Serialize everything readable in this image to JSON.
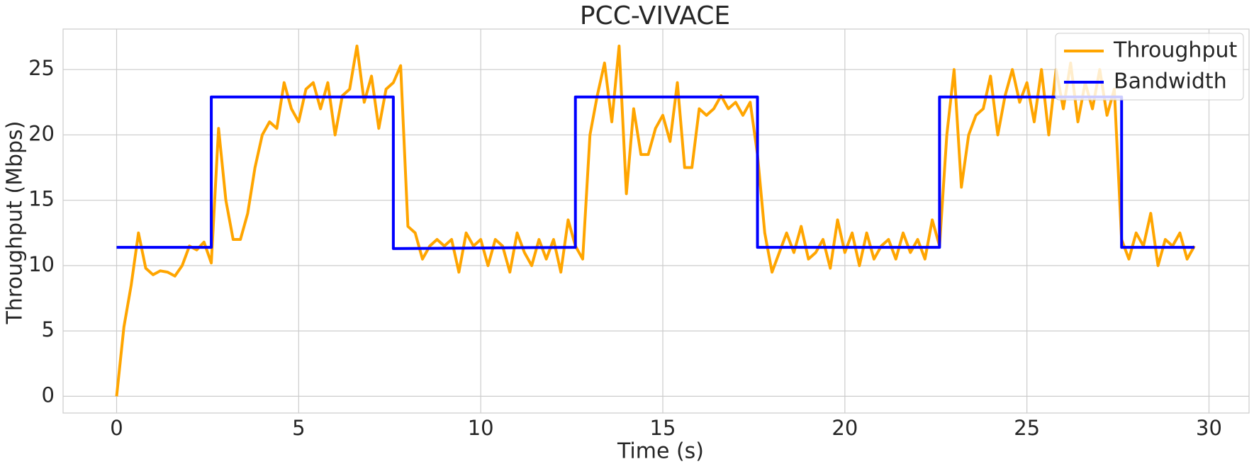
{
  "chart_data": {
    "type": "line",
    "title": "PCC-VIVACE",
    "x_label": "Time (s)",
    "y_label": "Throughput (Mbps)",
    "xlim": [
      -1.47,
      31.1
    ],
    "ylim": [
      -1.28,
      28.1
    ],
    "xticks": [
      0,
      5,
      10,
      15,
      20,
      25,
      30
    ],
    "yticks": [
      0,
      5,
      10,
      15,
      20,
      25
    ],
    "grid": true,
    "legend": "upper right",
    "series": [
      {
        "name": "Throughput",
        "color": "#ffa500",
        "x": [
          0,
          0.2,
          0.4,
          0.6,
          0.8,
          1.0,
          1.2,
          1.4,
          1.6,
          1.8,
          2.0,
          2.2,
          2.4,
          2.6,
          2.8,
          3.0,
          3.2,
          3.4,
          3.6,
          3.8,
          4.0,
          4.2,
          4.4,
          4.6,
          4.8,
          5.0,
          5.2,
          5.4,
          5.6,
          5.8,
          6.0,
          6.2,
          6.4,
          6.6,
          6.8,
          7.0,
          7.2,
          7.4,
          7.6,
          7.8,
          8.0,
          8.2,
          8.4,
          8.6,
          8.8,
          9.0,
          9.2,
          9.4,
          9.6,
          9.8,
          10.0,
          10.2,
          10.4,
          10.6,
          10.8,
          11.0,
          11.2,
          11.4,
          11.6,
          11.8,
          12.0,
          12.2,
          12.4,
          12.6,
          12.8,
          13.0,
          13.2,
          13.4,
          13.6,
          13.8,
          14.0,
          14.2,
          14.4,
          14.6,
          14.8,
          15.0,
          15.2,
          15.4,
          15.6,
          15.8,
          16.0,
          16.2,
          16.4,
          16.6,
          16.8,
          17.0,
          17.2,
          17.4,
          17.6,
          17.8,
          18.0,
          18.2,
          18.4,
          18.6,
          18.8,
          19.0,
          19.2,
          19.4,
          19.6,
          19.8,
          20.0,
          20.2,
          20.4,
          20.6,
          20.8,
          21.0,
          21.2,
          21.4,
          21.6,
          21.8,
          22.0,
          22.2,
          22.4,
          22.6,
          22.8,
          23.0,
          23.2,
          23.4,
          23.6,
          23.8,
          24.0,
          24.2,
          24.4,
          24.6,
          24.8,
          25.0,
          25.2,
          25.4,
          25.6,
          25.8,
          26.0,
          26.2,
          26.4,
          26.6,
          26.8,
          27.0,
          27.2,
          27.4,
          27.6,
          27.8,
          28.0,
          28.2,
          28.4,
          28.6,
          28.8,
          29.0,
          29.2,
          29.4,
          29.6
        ],
        "values": [
          0,
          5.3,
          8.5,
          12.5,
          9.8,
          9.3,
          9.6,
          9.5,
          9.2,
          10,
          11.5,
          11.2,
          11.8,
          10.2,
          20.5,
          15,
          12,
          12,
          14,
          17.5,
          20,
          21,
          20.5,
          24,
          22,
          21,
          23.5,
          24,
          22,
          24,
          20,
          23,
          23.5,
          26.8,
          22.5,
          24.5,
          20.5,
          23.5,
          24,
          25.3,
          13,
          12.5,
          10.5,
          11.5,
          12,
          11.5,
          12,
          9.5,
          12.5,
          11.5,
          12,
          10,
          12,
          11.5,
          9.5,
          12.5,
          11,
          10,
          12,
          10.5,
          12,
          9.5,
          13.5,
          11.5,
          10.5,
          20,
          23,
          25.5,
          21,
          26.8,
          15.5,
          22,
          18.5,
          18.5,
          20.5,
          21.5,
          19.5,
          24,
          17.5,
          17.5,
          22,
          21.5,
          22,
          23,
          22,
          22.5,
          21.5,
          22.5,
          18.5,
          12.5,
          9.5,
          11,
          12.5,
          11,
          13,
          10.5,
          11,
          12,
          9.8,
          13.5,
          11,
          12.5,
          10,
          12.5,
          10.5,
          11.5,
          12,
          10.5,
          12.5,
          11,
          12,
          10.5,
          13.5,
          11.5,
          20,
          25,
          16,
          20,
          21.5,
          22,
          24.5,
          20,
          23,
          25,
          22.5,
          24,
          21,
          25,
          20,
          25,
          22,
          25.5,
          21,
          24,
          22,
          25,
          21.5,
          23.5,
          12,
          10.5,
          12.5,
          11.5,
          14,
          10,
          12,
          11.5,
          12.5,
          10.5,
          11.5
        ]
      },
      {
        "name": "Bandwidth",
        "color": "#0000ff",
        "x": [
          0,
          2.6,
          2.6,
          7.6,
          7.6,
          12.6,
          12.6,
          17.6,
          17.6,
          22.6,
          22.6,
          27.6,
          27.6,
          29.6
        ],
        "values": [
          11.4,
          11.4,
          22.9,
          22.9,
          11.3,
          11.4,
          22.9,
          22.9,
          11.4,
          11.4,
          22.9,
          22.9,
          11.4,
          11.4
        ]
      }
    ]
  }
}
